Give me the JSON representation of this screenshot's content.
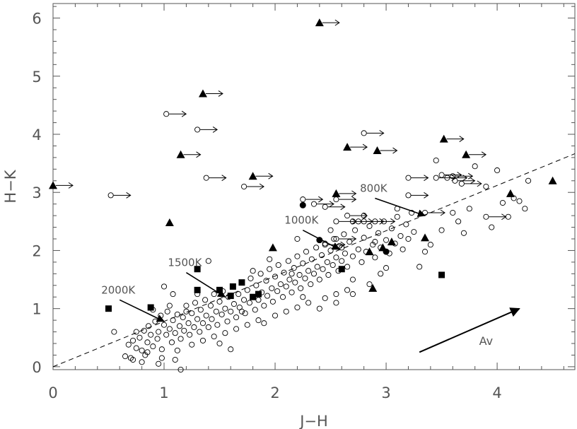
{
  "chart_data": {
    "type": "scatter",
    "title": "",
    "xlabel": "J−H",
    "ylabel": "H−K",
    "xlim": [
      0,
      4.7
    ],
    "ylim": [
      -0.05,
      6.25
    ],
    "xticks": [
      0,
      1,
      2,
      3,
      4
    ],
    "xtick_labels": [
      "0",
      "1",
      "2",
      "3",
      "4"
    ],
    "yticks": [
      0,
      1,
      2,
      3,
      4,
      5,
      6
    ],
    "ytick_labels": [
      "0",
      "1",
      "2",
      "3",
      "4",
      "5",
      "6"
    ],
    "grid": false,
    "reddening_line": {
      "slope": 0.78,
      "intercept": 0.0,
      "style": "dashed"
    },
    "reddening_vector": {
      "label": "Av",
      "from": [
        3.3,
        0.25
      ],
      "to": [
        4.2,
        1.0
      ]
    },
    "temperature_markers": [
      {
        "label": "2000K",
        "from": [
          0.6,
          1.15
        ],
        "to": [
          1.0,
          0.78
        ]
      },
      {
        "label": "1500K",
        "from": [
          1.2,
          1.62
        ],
        "to": [
          1.55,
          1.2
        ]
      },
      {
        "label": "1000K",
        "from": [
          2.25,
          2.35
        ],
        "to": [
          2.58,
          2.02
        ]
      },
      {
        "label": "800K",
        "from": [
          2.9,
          2.9
        ],
        "to": [
          3.35,
          2.6
        ]
      }
    ],
    "series": [
      {
        "marker": "open-circle",
        "points": [
          [
            0.55,
            0.6
          ],
          [
            0.68,
            0.38
          ],
          [
            0.7,
            0.15
          ],
          [
            0.72,
            0.45
          ],
          [
            0.75,
            0.32
          ],
          [
            0.78,
            0.5
          ],
          [
            0.8,
            0.28
          ],
          [
            0.82,
            0.62
          ],
          [
            0.83,
            0.2
          ],
          [
            0.85,
            0.42
          ],
          [
            0.86,
            0.7
          ],
          [
            0.88,
            0.55
          ],
          [
            0.9,
            0.35
          ],
          [
            0.92,
            0.78
          ],
          [
            0.94,
            0.48
          ],
          [
            0.95,
            0.6
          ],
          [
            0.97,
            0.88
          ],
          [
            0.98,
            0.3
          ],
          [
            1.0,
            0.72
          ],
          [
            1.02,
            0.55
          ],
          [
            1.03,
            0.95
          ],
          [
            1.05,
            0.65
          ],
          [
            1.07,
            0.42
          ],
          [
            1.08,
            0.8
          ],
          [
            1.1,
            0.58
          ],
          [
            1.12,
            0.9
          ],
          [
            1.14,
            0.7
          ],
          [
            1.15,
            0.48
          ],
          [
            1.17,
            0.85
          ],
          [
            1.18,
            0.62
          ],
          [
            1.2,
            1.05
          ],
          [
            1.22,
            0.75
          ],
          [
            1.23,
            0.55
          ],
          [
            1.25,
            0.92
          ],
          [
            1.27,
            0.68
          ],
          [
            1.28,
            1.1
          ],
          [
            1.3,
            0.82
          ],
          [
            1.32,
            0.6
          ],
          [
            1.33,
            0.98
          ],
          [
            1.35,
            0.75
          ],
          [
            1.37,
            1.15
          ],
          [
            1.38,
            0.88
          ],
          [
            1.4,
            0.68
          ],
          [
            1.42,
            1.05
          ],
          [
            1.43,
            0.82
          ],
          [
            1.45,
            1.25
          ],
          [
            1.47,
            0.95
          ],
          [
            1.48,
            0.72
          ],
          [
            1.5,
            1.12
          ],
          [
            1.52,
            0.9
          ],
          [
            1.53,
            1.3
          ],
          [
            1.55,
            1.0
          ],
          [
            1.57,
            0.78
          ],
          [
            1.58,
            1.2
          ],
          [
            1.6,
            0.95
          ],
          [
            1.62,
            1.38
          ],
          [
            1.63,
            1.08
          ],
          [
            1.65,
            0.85
          ],
          [
            1.67,
            1.25
          ],
          [
            1.68,
            1.02
          ],
          [
            1.7,
            1.45
          ],
          [
            1.72,
            1.15
          ],
          [
            1.73,
            0.92
          ],
          [
            1.75,
            1.32
          ],
          [
            1.77,
            1.1
          ],
          [
            1.78,
            1.52
          ],
          [
            1.8,
            1.2
          ],
          [
            1.82,
            0.98
          ],
          [
            1.83,
            1.4
          ],
          [
            1.85,
            1.15
          ],
          [
            1.87,
            1.6
          ],
          [
            1.88,
            1.28
          ],
          [
            1.9,
            1.05
          ],
          [
            1.92,
            1.48
          ],
          [
            1.93,
            1.22
          ],
          [
            1.95,
            1.68
          ],
          [
            1.97,
            1.35
          ],
          [
            1.98,
            1.12
          ],
          [
            2.0,
            1.55
          ],
          [
            2.02,
            1.3
          ],
          [
            2.03,
            1.75
          ],
          [
            2.05,
            1.42
          ],
          [
            2.07,
            1.2
          ],
          [
            2.08,
            1.62
          ],
          [
            2.1,
            1.38
          ],
          [
            2.12,
            1.82
          ],
          [
            2.13,
            1.5
          ],
          [
            2.15,
            1.28
          ],
          [
            2.17,
            1.7
          ],
          [
            2.18,
            1.45
          ],
          [
            2.2,
            1.9
          ],
          [
            2.22,
            1.58
          ],
          [
            2.23,
            1.35
          ],
          [
            2.25,
            1.78
          ],
          [
            2.27,
            1.52
          ],
          [
            2.28,
            1.98
          ],
          [
            2.3,
            1.65
          ],
          [
            2.32,
            1.42
          ],
          [
            2.33,
            1.85
          ],
          [
            2.35,
            1.6
          ],
          [
            2.37,
            2.05
          ],
          [
            2.38,
            1.72
          ],
          [
            2.4,
            1.5
          ],
          [
            2.42,
            1.92
          ],
          [
            2.43,
            1.68
          ],
          [
            2.45,
            2.12
          ],
          [
            2.47,
            1.8
          ],
          [
            2.48,
            1.58
          ],
          [
            2.5,
            2.0
          ],
          [
            2.52,
            1.75
          ],
          [
            2.53,
            2.2
          ],
          [
            2.55,
            1.88
          ],
          [
            2.57,
            1.65
          ],
          [
            2.58,
            2.08
          ],
          [
            2.6,
            1.82
          ],
          [
            2.62,
            2.28
          ],
          [
            2.63,
            1.95
          ],
          [
            2.65,
            1.72
          ],
          [
            2.67,
            2.15
          ],
          [
            2.7,
            1.9
          ],
          [
            2.72,
            2.35
          ],
          [
            2.75,
            2.02
          ],
          [
            2.78,
            1.8
          ],
          [
            2.8,
            2.22
          ],
          [
            2.82,
            1.98
          ],
          [
            2.85,
            2.42
          ],
          [
            2.88,
            2.1
          ],
          [
            2.9,
            1.88
          ],
          [
            2.93,
            2.3
          ],
          [
            2.95,
            2.05
          ],
          [
            2.98,
            2.5
          ],
          [
            3.0,
            2.18
          ],
          [
            3.03,
            1.95
          ],
          [
            3.05,
            2.38
          ],
          [
            3.08,
            2.12
          ],
          [
            3.1,
            2.58
          ],
          [
            3.13,
            2.25
          ],
          [
            3.15,
            2.02
          ],
          [
            3.18,
            2.45
          ],
          [
            3.2,
            2.2
          ],
          [
            3.23,
            2.65
          ],
          [
            3.25,
            2.32
          ],
          [
            1.25,
            0.38
          ],
          [
            1.35,
            0.45
          ],
          [
            1.45,
            0.52
          ],
          [
            1.55,
            0.58
          ],
          [
            1.6,
            0.3
          ],
          [
            1.65,
            0.65
          ],
          [
            1.75,
            0.72
          ],
          [
            1.85,
            0.8
          ],
          [
            2.0,
            0.88
          ],
          [
            2.1,
            0.95
          ],
          [
            2.2,
            1.02
          ],
          [
            2.3,
            1.1
          ],
          [
            2.45,
            1.18
          ],
          [
            2.55,
            1.25
          ],
          [
            2.65,
            1.32
          ],
          [
            2.7,
            1.5
          ],
          [
            2.85,
            1.42
          ],
          [
            2.95,
            1.6
          ],
          [
            3.0,
            1.7
          ],
          [
            3.3,
            1.72
          ],
          [
            3.4,
            2.1
          ],
          [
            3.5,
            2.35
          ],
          [
            3.65,
            2.5
          ],
          [
            3.7,
            2.3
          ],
          [
            3.75,
            2.72
          ],
          [
            3.8,
            3.45
          ],
          [
            3.9,
            3.1
          ],
          [
            3.95,
            2.4
          ],
          [
            4.0,
            3.38
          ],
          [
            4.05,
            2.82
          ],
          [
            4.1,
            2.58
          ],
          [
            4.15,
            2.9
          ],
          [
            4.2,
            2.85
          ],
          [
            4.25,
            2.72
          ],
          [
            4.28,
            3.2
          ],
          [
            3.45,
            3.55
          ],
          [
            3.6,
            2.65
          ],
          [
            0.95,
            0.05
          ],
          [
            1.1,
            0.12
          ],
          [
            1.15,
            -0.05
          ],
          [
            0.8,
            0.08
          ],
          [
            0.65,
            0.18
          ],
          [
            0.75,
            0.6
          ],
          [
            0.9,
            0.98
          ],
          [
            1.0,
            1.38
          ],
          [
            1.05,
            1.05
          ],
          [
            1.12,
            0.28
          ],
          [
            1.4,
            1.82
          ],
          [
            1.5,
            0.4
          ],
          [
            2.2,
            2.2
          ],
          [
            2.5,
            2.35
          ],
          [
            2.6,
            2.05
          ],
          [
            2.75,
            2.5
          ],
          [
            2.8,
            2.6
          ],
          [
            2.9,
            2.15
          ],
          [
            2.7,
            1.25
          ],
          [
            2.55,
            1.1
          ],
          [
            2.4,
            1.0
          ],
          [
            2.25,
            1.2
          ],
          [
            2.15,
            1.6
          ],
          [
            1.95,
            1.85
          ],
          [
            1.9,
            0.75
          ],
          [
            1.7,
            0.95
          ],
          [
            1.8,
            1.65
          ],
          [
            1.3,
            1.25
          ],
          [
            1.2,
            0.95
          ],
          [
            1.08,
            1.25
          ],
          [
            0.98,
            0.15
          ],
          [
            0.85,
            0.25
          ],
          [
            0.72,
            0.12
          ],
          [
            3.1,
            2.72
          ],
          [
            3.35,
            1.98
          ]
        ]
      },
      {
        "marker": "open-circle-arrow",
        "points": [
          [
            1.02,
            4.35
          ],
          [
            1.3,
            4.08
          ],
          [
            1.38,
            3.25
          ],
          [
            1.72,
            3.1
          ],
          [
            0.52,
            2.95
          ],
          [
            2.25,
            2.88
          ],
          [
            2.35,
            2.8
          ],
          [
            2.45,
            2.75
          ],
          [
            2.55,
            2.88
          ],
          [
            2.55,
            2.5
          ],
          [
            2.65,
            2.6
          ],
          [
            2.7,
            2.5
          ],
          [
            2.8,
            2.5
          ],
          [
            2.9,
            2.5
          ],
          [
            2.8,
            4.02
          ],
          [
            3.2,
            3.25
          ],
          [
            3.2,
            2.95
          ],
          [
            3.35,
            2.65
          ],
          [
            3.45,
            3.25
          ],
          [
            3.5,
            3.3
          ],
          [
            3.55,
            3.25
          ],
          [
            3.6,
            3.28
          ],
          [
            3.62,
            3.2
          ],
          [
            3.68,
            3.15
          ],
          [
            3.9,
            2.58
          ],
          [
            2.55,
            2.2
          ],
          [
            2.45,
            2.1
          ]
        ]
      },
      {
        "marker": "filled-triangle",
        "points": [
          [
            1.05,
            2.48
          ],
          [
            1.98,
            2.05
          ],
          [
            2.88,
            1.35
          ],
          [
            2.85,
            1.98
          ],
          [
            2.97,
            2.05
          ],
          [
            3.05,
            2.15
          ],
          [
            3.35,
            2.22
          ],
          [
            4.12,
            2.98
          ],
          [
            4.5,
            3.2
          ]
        ]
      },
      {
        "marker": "filled-triangle-arrow",
        "points": [
          [
            0.0,
            3.12
          ],
          [
            1.15,
            3.65
          ],
          [
            1.35,
            4.7
          ],
          [
            1.8,
            3.28
          ],
          [
            2.4,
            5.92
          ],
          [
            2.55,
            2.98
          ],
          [
            2.65,
            3.78
          ],
          [
            2.92,
            3.72
          ],
          [
            3.52,
            3.92
          ],
          [
            3.72,
            3.65
          ]
        ]
      },
      {
        "marker": "filled-square",
        "points": [
          [
            0.5,
            1.0
          ],
          [
            0.88,
            1.02
          ],
          [
            1.3,
            1.68
          ],
          [
            1.3,
            1.32
          ],
          [
            1.5,
            1.32
          ],
          [
            1.6,
            1.22
          ],
          [
            1.62,
            1.38
          ],
          [
            1.7,
            1.45
          ],
          [
            1.8,
            1.2
          ],
          [
            1.85,
            1.25
          ],
          [
            2.6,
            1.68
          ],
          [
            3.5,
            1.58
          ]
        ]
      },
      {
        "marker": "filled-circle",
        "points": [
          [
            2.25,
            2.78
          ],
          [
            2.4,
            2.18
          ],
          [
            3.0,
            1.98
          ]
        ]
      }
    ]
  }
}
